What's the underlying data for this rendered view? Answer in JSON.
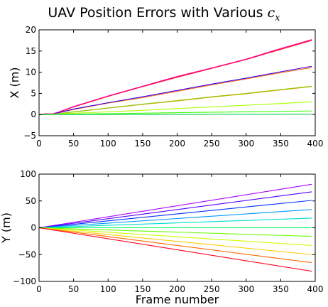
{
  "chart_data": [
    {
      "type": "line",
      "title": "UAV Position Errors with Various",
      "title_symbol": "c",
      "title_symbol_sub": "x",
      "xlabel": "",
      "ylabel": "X (m)",
      "xlim": [
        0,
        400
      ],
      "ylim": [
        -5,
        20
      ],
      "xticks": [
        0,
        50,
        100,
        150,
        200,
        250,
        300,
        350,
        400
      ],
      "yticks": [
        -5,
        0,
        5,
        10,
        15,
        20
      ],
      "ytick_labels": [
        "−5",
        "0",
        "5",
        "10",
        "15",
        "20"
      ],
      "grid": false,
      "series": [
        {
          "color": "#ff0000",
          "x": [
            0,
            5,
            10,
            20,
            30,
            50,
            100,
            150,
            200,
            250,
            300,
            350,
            395
          ],
          "y": [
            0,
            0.1,
            0.2,
            0.15,
            0.6,
            1.8,
            4.3,
            6.6,
            8.8,
            10.9,
            13.0,
            15.4,
            17.5
          ]
        },
        {
          "color": "#ff00aa",
          "x": [
            0,
            5,
            10,
            20,
            30,
            50,
            100,
            150,
            200,
            250,
            300,
            350,
            395
          ],
          "y": [
            0,
            0.1,
            0.2,
            0.2,
            0.7,
            1.9,
            4.4,
            6.7,
            9.0,
            11.0,
            13.1,
            15.6,
            17.7
          ]
        },
        {
          "color": "#ff6600",
          "x": [
            0,
            20,
            50,
            100,
            150,
            200,
            250,
            300,
            350,
            395
          ],
          "y": [
            0,
            0.1,
            1.2,
            2.7,
            4.0,
            5.5,
            7.0,
            8.4,
            9.9,
            11.1
          ]
        },
        {
          "color": "#3300ff",
          "x": [
            0,
            20,
            50,
            100,
            150,
            200,
            250,
            300,
            350,
            395
          ],
          "y": [
            0,
            0.1,
            1.3,
            2.8,
            4.2,
            5.7,
            7.2,
            8.6,
            10.1,
            11.4
          ]
        },
        {
          "color": "#ff9900",
          "x": [
            0,
            20,
            50,
            100,
            150,
            200,
            250,
            300,
            350,
            395
          ],
          "y": [
            0,
            0.05,
            0.6,
            1.5,
            2.4,
            3.2,
            4.1,
            4.9,
            5.8,
            6.6
          ]
        },
        {
          "color": "#88cc00",
          "x": [
            0,
            20,
            50,
            100,
            150,
            200,
            250,
            300,
            350,
            395
          ],
          "y": [
            0,
            0.05,
            0.65,
            1.55,
            2.45,
            3.3,
            4.2,
            5.0,
            5.9,
            6.7
          ]
        },
        {
          "color": "#aaff00",
          "x": [
            0,
            50,
            100,
            150,
            200,
            250,
            300,
            350,
            395
          ],
          "y": [
            0,
            0.3,
            0.65,
            1.0,
            1.4,
            1.8,
            2.2,
            2.6,
            3.0
          ]
        },
        {
          "color": "#33ff00",
          "x": [
            0,
            100,
            200,
            300,
            395
          ],
          "y": [
            0,
            0.2,
            0.45,
            0.65,
            0.85
          ]
        },
        {
          "color": "#00cc44",
          "x": [
            0,
            100,
            200,
            300,
            395
          ],
          "y": [
            0,
            0.02,
            0.05,
            0.08,
            0.1
          ]
        }
      ]
    },
    {
      "type": "line",
      "title": "",
      "xlabel": "Frame number",
      "ylabel": "Y (m)",
      "xlim": [
        0,
        400
      ],
      "ylim": [
        -100,
        100
      ],
      "xticks": [
        0,
        50,
        100,
        150,
        200,
        250,
        300,
        350,
        400
      ],
      "yticks": [
        -100,
        -50,
        0,
        50,
        100
      ],
      "ytick_labels": [
        "−100",
        "−50",
        "0",
        "50",
        "100"
      ],
      "grid": false,
      "series": [
        {
          "color": "#aa00ff",
          "x": [
            0,
            395
          ],
          "y": [
            0,
            81
          ]
        },
        {
          "color": "#5500ff",
          "x": [
            0,
            395
          ],
          "y": [
            0,
            67
          ]
        },
        {
          "color": "#0033ff",
          "x": [
            0,
            395
          ],
          "y": [
            0,
            51
          ]
        },
        {
          "color": "#0099ff",
          "x": [
            0,
            395
          ],
          "y": [
            0,
            34
          ]
        },
        {
          "color": "#00ddcc",
          "x": [
            0,
            395
          ],
          "y": [
            0,
            18
          ]
        },
        {
          "color": "#00ff66",
          "x": [
            0,
            395
          ],
          "y": [
            0,
            0
          ]
        },
        {
          "color": "#66ff00",
          "x": [
            0,
            395
          ],
          "y": [
            0,
            -16
          ]
        },
        {
          "color": "#ccff00",
          "x": [
            0,
            395
          ],
          "y": [
            0,
            -33
          ]
        },
        {
          "color": "#ffcc00",
          "x": [
            0,
            395
          ],
          "y": [
            0,
            -50
          ]
        },
        {
          "color": "#ff6600",
          "x": [
            0,
            395
          ],
          "y": [
            0,
            -65
          ]
        },
        {
          "color": "#ff0022",
          "x": [
            0,
            395
          ],
          "y": [
            0,
            -81
          ]
        }
      ]
    }
  ]
}
